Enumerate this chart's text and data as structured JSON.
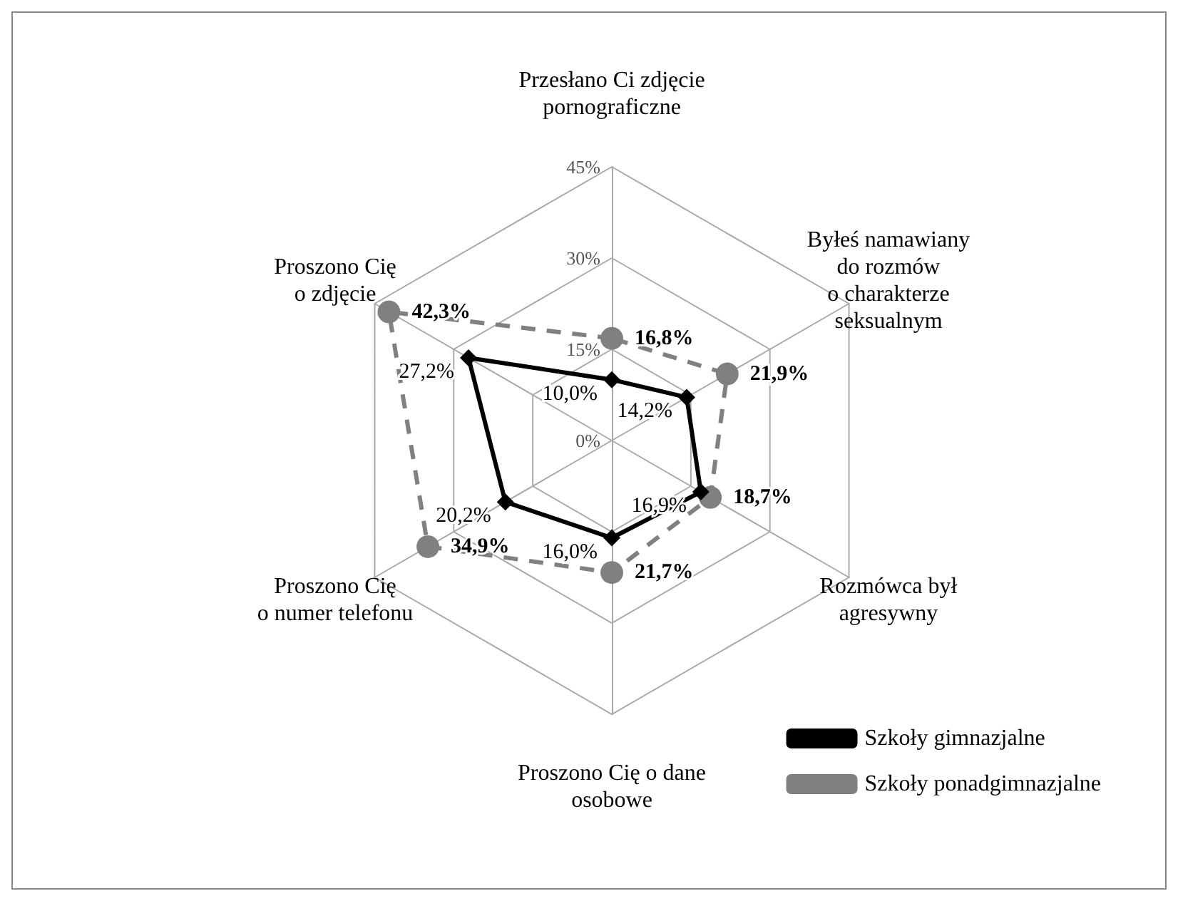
{
  "chart_data": {
    "type": "radar",
    "categories": [
      "Przesłano Ci zdjęcie\npornograficzne",
      "Byłeś namawiany\ndo rozmów\no charakterze\nseksualnym",
      "Rozmówca był\nagresywny",
      "Proszono Cię o dane\nosobowe",
      "Proszono Cię\no numer telefonu",
      "Proszono Cię\no zdjęcie"
    ],
    "ylim": [
      0,
      45
    ],
    "yticks": [
      {
        "value": 0,
        "label": "0%"
      },
      {
        "value": 15,
        "label": "15%"
      },
      {
        "value": 30,
        "label": "30%"
      },
      {
        "value": 45,
        "label": "45%"
      }
    ],
    "grid": true,
    "legend": "bottom right",
    "series": [
      {
        "name": "Szkoły gimnazjalne",
        "color": "#000000",
        "marker": "diamond",
        "line_style": "solid",
        "values": [
          10.0,
          14.2,
          16.9,
          16.0,
          20.2,
          27.2
        ],
        "value_labels": [
          "10,0%",
          "14,2%",
          "16,9%",
          "16,0%",
          "20,2%",
          "27,2%"
        ]
      },
      {
        "name": "Szkoły ponadgimnazjalne",
        "color": "#808080",
        "marker": "circle",
        "line_style": "dashed",
        "values": [
          16.8,
          21.9,
          18.7,
          21.7,
          34.9,
          42.3
        ],
        "value_labels": [
          "16,8%",
          "21,9%",
          "18,7%",
          "21,7%",
          "34,9%",
          "42,3%"
        ]
      }
    ]
  }
}
